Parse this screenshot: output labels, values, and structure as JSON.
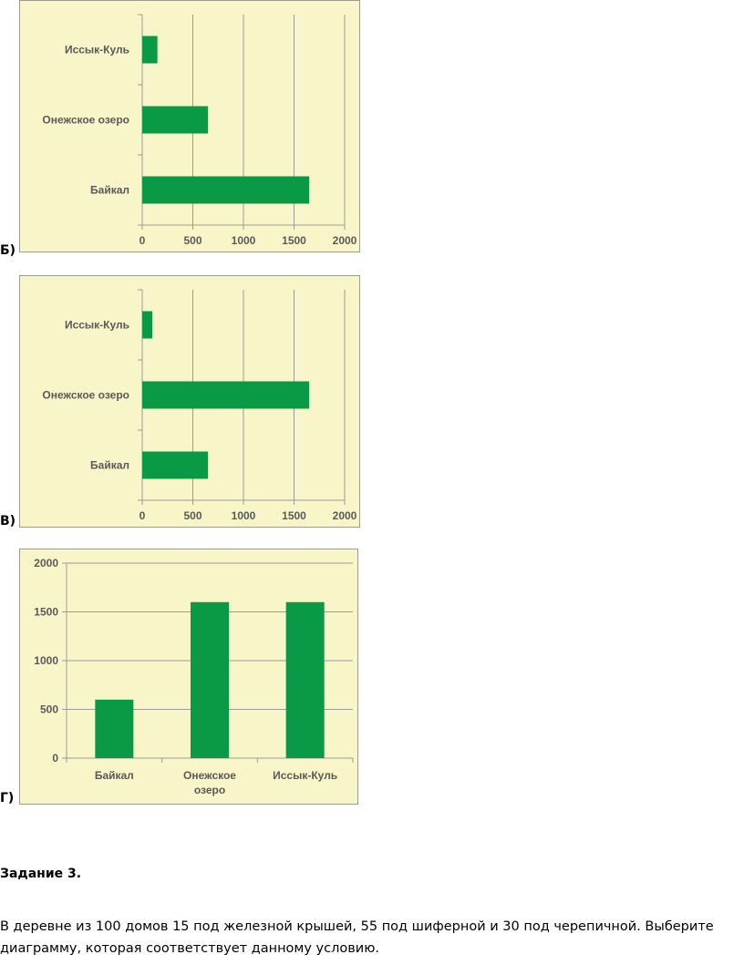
{
  "bar_color": "#0a9a45",
  "chart_bg": "#f8f6c8",
  "labels": {
    "b": "Б)",
    "v": "В)",
    "g": "Г)"
  },
  "task": {
    "title": "Задание 3.",
    "text": "В деревне из 100 домов 15 под железной крышей, 55 под шиферной и 30 под черепичной. Выберите диаграмму, которая соответствует данному условию."
  },
  "chart_data": [
    {
      "type": "bar",
      "orientation": "horizontal",
      "categories": [
        "Иссык-Куль",
        "Онежское озеро",
        "Байкал"
      ],
      "values": [
        150,
        650,
        1650
      ],
      "xticks": [
        0,
        500,
        1000,
        1500,
        2000
      ],
      "xlim": [
        0,
        2000
      ],
      "grid": true
    },
    {
      "type": "bar",
      "orientation": "horizontal",
      "categories": [
        "Иссык-Куль",
        "Онежское озеро",
        "Байкал"
      ],
      "values": [
        100,
        1650,
        650
      ],
      "xticks": [
        0,
        500,
        1000,
        1500,
        2000
      ],
      "xlim": [
        0,
        2000
      ],
      "grid": true
    },
    {
      "type": "bar",
      "orientation": "vertical",
      "categories": [
        "Байкал",
        "Онежское озеро",
        "Иссык-Куль"
      ],
      "values": [
        600,
        1600,
        1600
      ],
      "yticks": [
        0,
        500,
        1000,
        1500,
        2000
      ],
      "ylim": [
        0,
        2000
      ],
      "grid": true
    }
  ]
}
